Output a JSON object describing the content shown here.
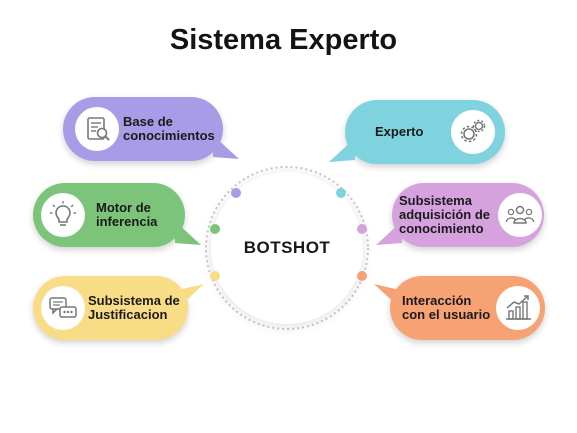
{
  "title": "Sistema Experto",
  "center": {
    "label": "BOTSHOT"
  },
  "nodes": {
    "base": {
      "label": "Base de conocimientos",
      "color": "#a89ce6",
      "icon": "document-search-icon"
    },
    "motor": {
      "label": "Motor de inferencia",
      "color": "#7cc47a",
      "icon": "lightbulb-icon"
    },
    "justificacion": {
      "label": "Subsistema de Justificacion",
      "color": "#f9dc86",
      "icon": "chat-bubbles-icon"
    },
    "experto": {
      "label": "Experto",
      "color": "#7fd3df",
      "icon": "gears-icon"
    },
    "adquisicion": {
      "label": "Subsistema adquisición de conocimiento",
      "color": "#d5a2de",
      "icon": "people-icon"
    },
    "interaccion": {
      "label": "Interacción con el usuario",
      "color": "#f6a274",
      "icon": "growth-chart-icon"
    }
  }
}
